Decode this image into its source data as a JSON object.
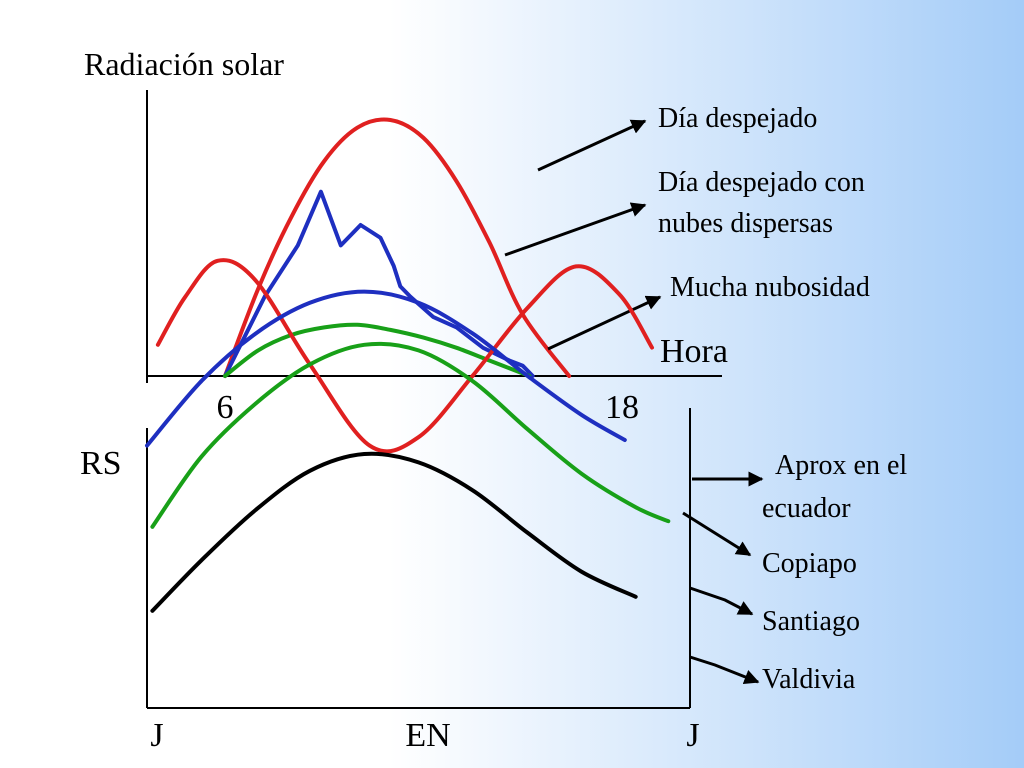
{
  "chart_data": [
    {
      "type": "line",
      "title": "Radiación solar",
      "xlabel": "Hora",
      "ylabel": "",
      "x_ticks": [
        "6",
        "18"
      ],
      "grid": false,
      "series": [
        {
          "name": "Día despejado",
          "color": "#e02020",
          "points": [
            [
              6,
              0
            ],
            [
              7,
              0.34
            ],
            [
              8,
              0.62
            ],
            [
              9,
              0.84
            ],
            [
              10,
              0.97
            ],
            [
              11,
              1.0
            ],
            [
              12,
              0.93
            ],
            [
              13,
              0.76
            ],
            [
              14,
              0.52
            ],
            [
              15,
              0.24
            ],
            [
              16.4,
              0
            ]
          ]
        },
        {
          "name": "Día despejado con nubes dispersas",
          "color": "#1e2fc0",
          "points": [
            [
              6,
              0
            ],
            [
              7.2,
              0.31
            ],
            [
              8.2,
              0.51
            ],
            [
              8.9,
              0.72
            ],
            [
              9.5,
              0.51
            ],
            [
              10.1,
              0.59
            ],
            [
              10.7,
              0.54
            ],
            [
              11.1,
              0.43
            ],
            [
              11.3,
              0.35
            ],
            [
              11.6,
              0.31
            ],
            [
              12.3,
              0.23
            ],
            [
              13,
              0.19
            ],
            [
              13.8,
              0.11
            ],
            [
              14.6,
              0.06
            ],
            [
              15,
              0.04
            ],
            [
              15.3,
              0.0
            ]
          ]
        },
        {
          "name": "Mucha nubosidad",
          "color": "#18a018",
          "points": [
            [
              6,
              0
            ],
            [
              7,
              0.1
            ],
            [
              8,
              0.16
            ],
            [
              9,
              0.19
            ],
            [
              10,
              0.2
            ],
            [
              11,
              0.18
            ],
            [
              12,
              0.15
            ],
            [
              13,
              0.11
            ],
            [
              14,
              0.06
            ],
            [
              15.2,
              0
            ]
          ]
        }
      ]
    },
    {
      "type": "line",
      "title": "",
      "ylabel": "RS",
      "xlabel": "",
      "x_ticks": [
        "J",
        "EN",
        "J"
      ],
      "grid": false,
      "series": [
        {
          "name": "Aprox en el ecuador",
          "color": "#e02020",
          "points": [
            [
              0.02,
              0.69
            ],
            [
              0.07,
              0.86
            ],
            [
              0.13,
              0.99
            ],
            [
              0.2,
              0.92
            ],
            [
              0.3,
              0.62
            ],
            [
              0.41,
              0.33
            ],
            [
              0.5,
              0.36
            ],
            [
              0.6,
              0.58
            ],
            [
              0.7,
              0.82
            ],
            [
              0.79,
              0.97
            ],
            [
              0.87,
              0.87
            ],
            [
              0.93,
              0.68
            ]
          ]
        },
        {
          "name": "Copiapo",
          "color": "#1e2fc0",
          "points": [
            [
              0.0,
              0.33
            ],
            [
              0.1,
              0.56
            ],
            [
              0.2,
              0.73
            ],
            [
              0.3,
              0.84
            ],
            [
              0.4,
              0.88
            ],
            [
              0.5,
              0.84
            ],
            [
              0.6,
              0.73
            ],
            [
              0.7,
              0.58
            ],
            [
              0.8,
              0.44
            ],
            [
              0.88,
              0.35
            ]
          ]
        },
        {
          "name": "Santiago",
          "color": "#18a018",
          "points": [
            [
              0.01,
              0.04
            ],
            [
              0.1,
              0.29
            ],
            [
              0.2,
              0.48
            ],
            [
              0.3,
              0.62
            ],
            [
              0.4,
              0.69
            ],
            [
              0.5,
              0.67
            ],
            [
              0.6,
              0.56
            ],
            [
              0.7,
              0.39
            ],
            [
              0.8,
              0.23
            ],
            [
              0.9,
              0.11
            ],
            [
              0.96,
              0.06
            ]
          ]
        },
        {
          "name": "Valdivia",
          "color": "#000000",
          "points": [
            [
              0.01,
              -0.26
            ],
            [
              0.1,
              -0.08
            ],
            [
              0.2,
              0.1
            ],
            [
              0.3,
              0.24
            ],
            [
              0.4,
              0.3
            ],
            [
              0.5,
              0.27
            ],
            [
              0.6,
              0.17
            ],
            [
              0.7,
              0.02
            ],
            [
              0.8,
              -0.12
            ],
            [
              0.9,
              -0.21
            ]
          ]
        }
      ]
    }
  ],
  "labels": {
    "top_title": "Radiación solar",
    "legend1": "Día despejado",
    "legend2_l1": "Día despejado con",
    "legend2_l2": "nubes dispersas",
    "legend3": "Mucha nubosidad",
    "hora": "Hora",
    "tick6": "6",
    "tick18": "18",
    "rs": "RS",
    "ecuador_l1": "Aprox en el",
    "ecuador_l2": "ecuador",
    "copiapo": "Copiapo",
    "santiago": "Santiago",
    "valdivia": "Valdivia",
    "tick_j1": "J",
    "tick_en": "EN",
    "tick_j2": "J"
  }
}
